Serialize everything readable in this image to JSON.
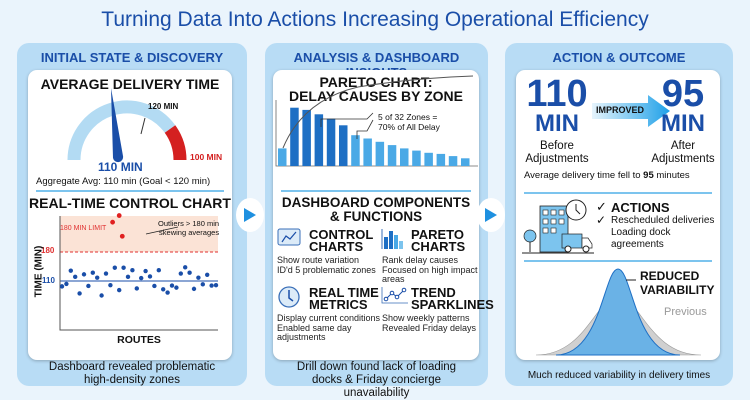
{
  "title": "Turning Data Into Actions Increasing Operational Efficiency",
  "colors": {
    "accent": "#1a4ea8",
    "light_blue": "#b8dcf5",
    "red": "#d42020",
    "bar_dark": "#1e6fc4",
    "bar_light": "#4aa9e6"
  },
  "panel1": {
    "header": "INITIAL STATE & DISCOVERY",
    "gauge": {
      "title": "AVERAGE DELIVERY TIME",
      "value_label": "110 MIN",
      "mark_label": "120 MIN",
      "red_label": "100 MIN",
      "value": 110,
      "caption": "Aggregate Avg: 110 min (Goal < 120 min)"
    },
    "control_chart": {
      "title": "REAL-TIME CONTROL CHART",
      "ylabel": "TIME (MIN)",
      "xlabel": "ROUTES",
      "limit_label": "180 MIN LIMIT",
      "tick_180": "180",
      "tick_110": "110",
      "annotation": "Outliers > 180 min",
      "annotation2": "skewing averages",
      "points": [
        97,
        103,
        135,
        120,
        80,
        126,
        98,
        130,
        118,
        75,
        128,
        100,
        142,
        88,
        142,
        120,
        136,
        92,
        117,
        134,
        121,
        98,
        136,
        90,
        82,
        99,
        94,
        128,
        143,
        130,
        91,
        118,
        102,
        125,
        99,
        100
      ],
      "outliers": [
        {
          "x": 11.5,
          "y": 252
        },
        {
          "x": 13,
          "y": 268
        },
        {
          "x": 13.7,
          "y": 218
        }
      ]
    },
    "footer": "Dashboard revealed problematic high-density zones"
  },
  "panel2": {
    "header": "ANALYSIS & DASHBOARD INSIGHTS",
    "pareto": {
      "title1": "PARETO CHART:",
      "title2": "DELAY CAUSES BY ZONE",
      "annotation1": "5 of 32 Zones =",
      "annotation2": "70% of All Delay",
      "values": [
        16,
        53,
        51,
        47,
        43,
        37,
        28,
        25,
        22,
        19,
        16,
        14,
        12,
        11,
        9,
        7
      ],
      "highlight": [
        1,
        2,
        3,
        4,
        5
      ]
    },
    "components_title1": "DASHBOARD COMPONENTS",
    "components_title2": "& FUNCTIONS",
    "components": [
      {
        "icon": "line-chart-icon",
        "t1": "CONTROL",
        "t2": "CHARTS",
        "d": [
          "Show route variation",
          "ID'd 5 problematic zones"
        ]
      },
      {
        "icon": "bar-chart-icon",
        "t1": "PARETO",
        "t2": "CHARTS",
        "d": [
          "Rank delay causes",
          "Focused on high impact",
          "areas"
        ]
      },
      {
        "icon": "clock-icon",
        "t1": "REAL TIME",
        "t2": "METRICS",
        "d": [
          "Display current conditions",
          "Enabled same day",
          "adjustments"
        ]
      },
      {
        "icon": "sparkline-icon",
        "t1": "TREND",
        "t2": "SPARKLINES",
        "d": [
          "Show weekly patterns",
          "Revealed Friday delays"
        ]
      }
    ],
    "footer": "Drill down found lack of loading docks & Friday concierge unavailability"
  },
  "panel3": {
    "header": "ACTION & OUTCOME",
    "before_value": "110",
    "before_unit": "MIN",
    "before_label1": "Before",
    "before_label2": "Adjustments",
    "arrow_label": "IMPROVED",
    "after_value": "95",
    "after_unit": "MIN",
    "after_label1": "After",
    "after_label2": "Adjustments",
    "summary_pre": "Average delivery time fell to ",
    "summary_bold": "95",
    "summary_post": " minutes",
    "actions_title": "ACTIONS",
    "actions": [
      "Rescheduled deliveries",
      "Loading dock",
      "agreements"
    ],
    "reduced1": "REDUCED",
    "reduced2": "VARIABILITY",
    "previous": "Previous",
    "footer": "Much reduced variability in delivery times"
  }
}
